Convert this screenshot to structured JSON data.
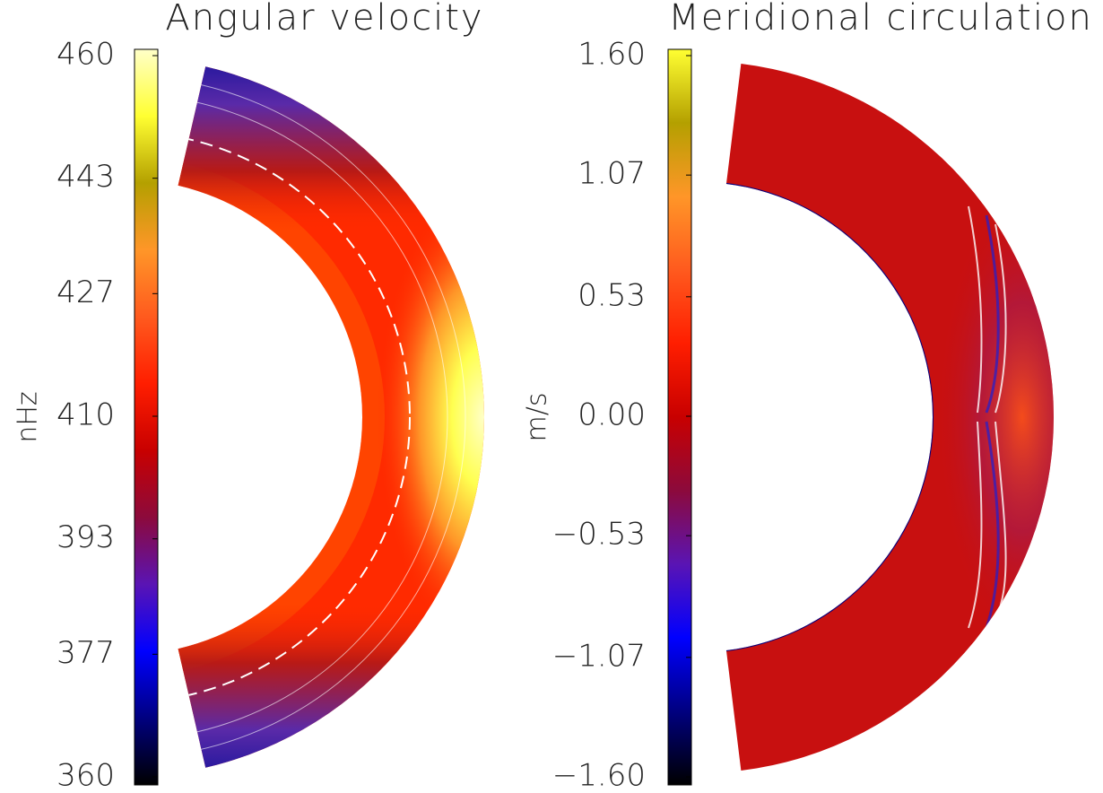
{
  "chart_data": [
    {
      "type": "colorbar-wedge",
      "title": "Angular velocity",
      "colorbar_label": "nHz",
      "colorscale": [
        "#000000",
        "#000080",
        "#0000ff",
        "#5a14b4",
        "#8c0a3c",
        "#c80000",
        "#ff1e00",
        "#ff5a1e",
        "#ff9628",
        "#b4a000",
        "#ffff32",
        "#ffffc8"
      ],
      "ylim": [
        360,
        460
      ],
      "yticks": [
        360,
        377,
        393,
        410,
        427,
        443,
        460
      ]
    },
    {
      "type": "colorbar-wedge",
      "title": "Meridional circulation",
      "colorbar_label": "m/s",
      "colorscale": [
        "#000000",
        "#000080",
        "#0000ff",
        "#5a14b4",
        "#8c0a3c",
        "#c80000",
        "#ff1e00",
        "#ff5a1e",
        "#ff9628",
        "#b4a000",
        "#ffff32"
      ],
      "ylim": [
        -1.6,
        1.6
      ],
      "yticks": [
        {
          "value": -1.6,
          "label": "−1.60"
        },
        {
          "value": -1.07,
          "label": "−1.07"
        },
        {
          "value": -0.53,
          "label": "−0.53"
        },
        {
          "value": 0,
          "label": "0.00"
        },
        {
          "value": 0.53,
          "label": "0.53"
        },
        {
          "value": 1.07,
          "label": "1.07"
        },
        {
          "value": 1.6,
          "label": "1.60"
        }
      ]
    }
  ]
}
